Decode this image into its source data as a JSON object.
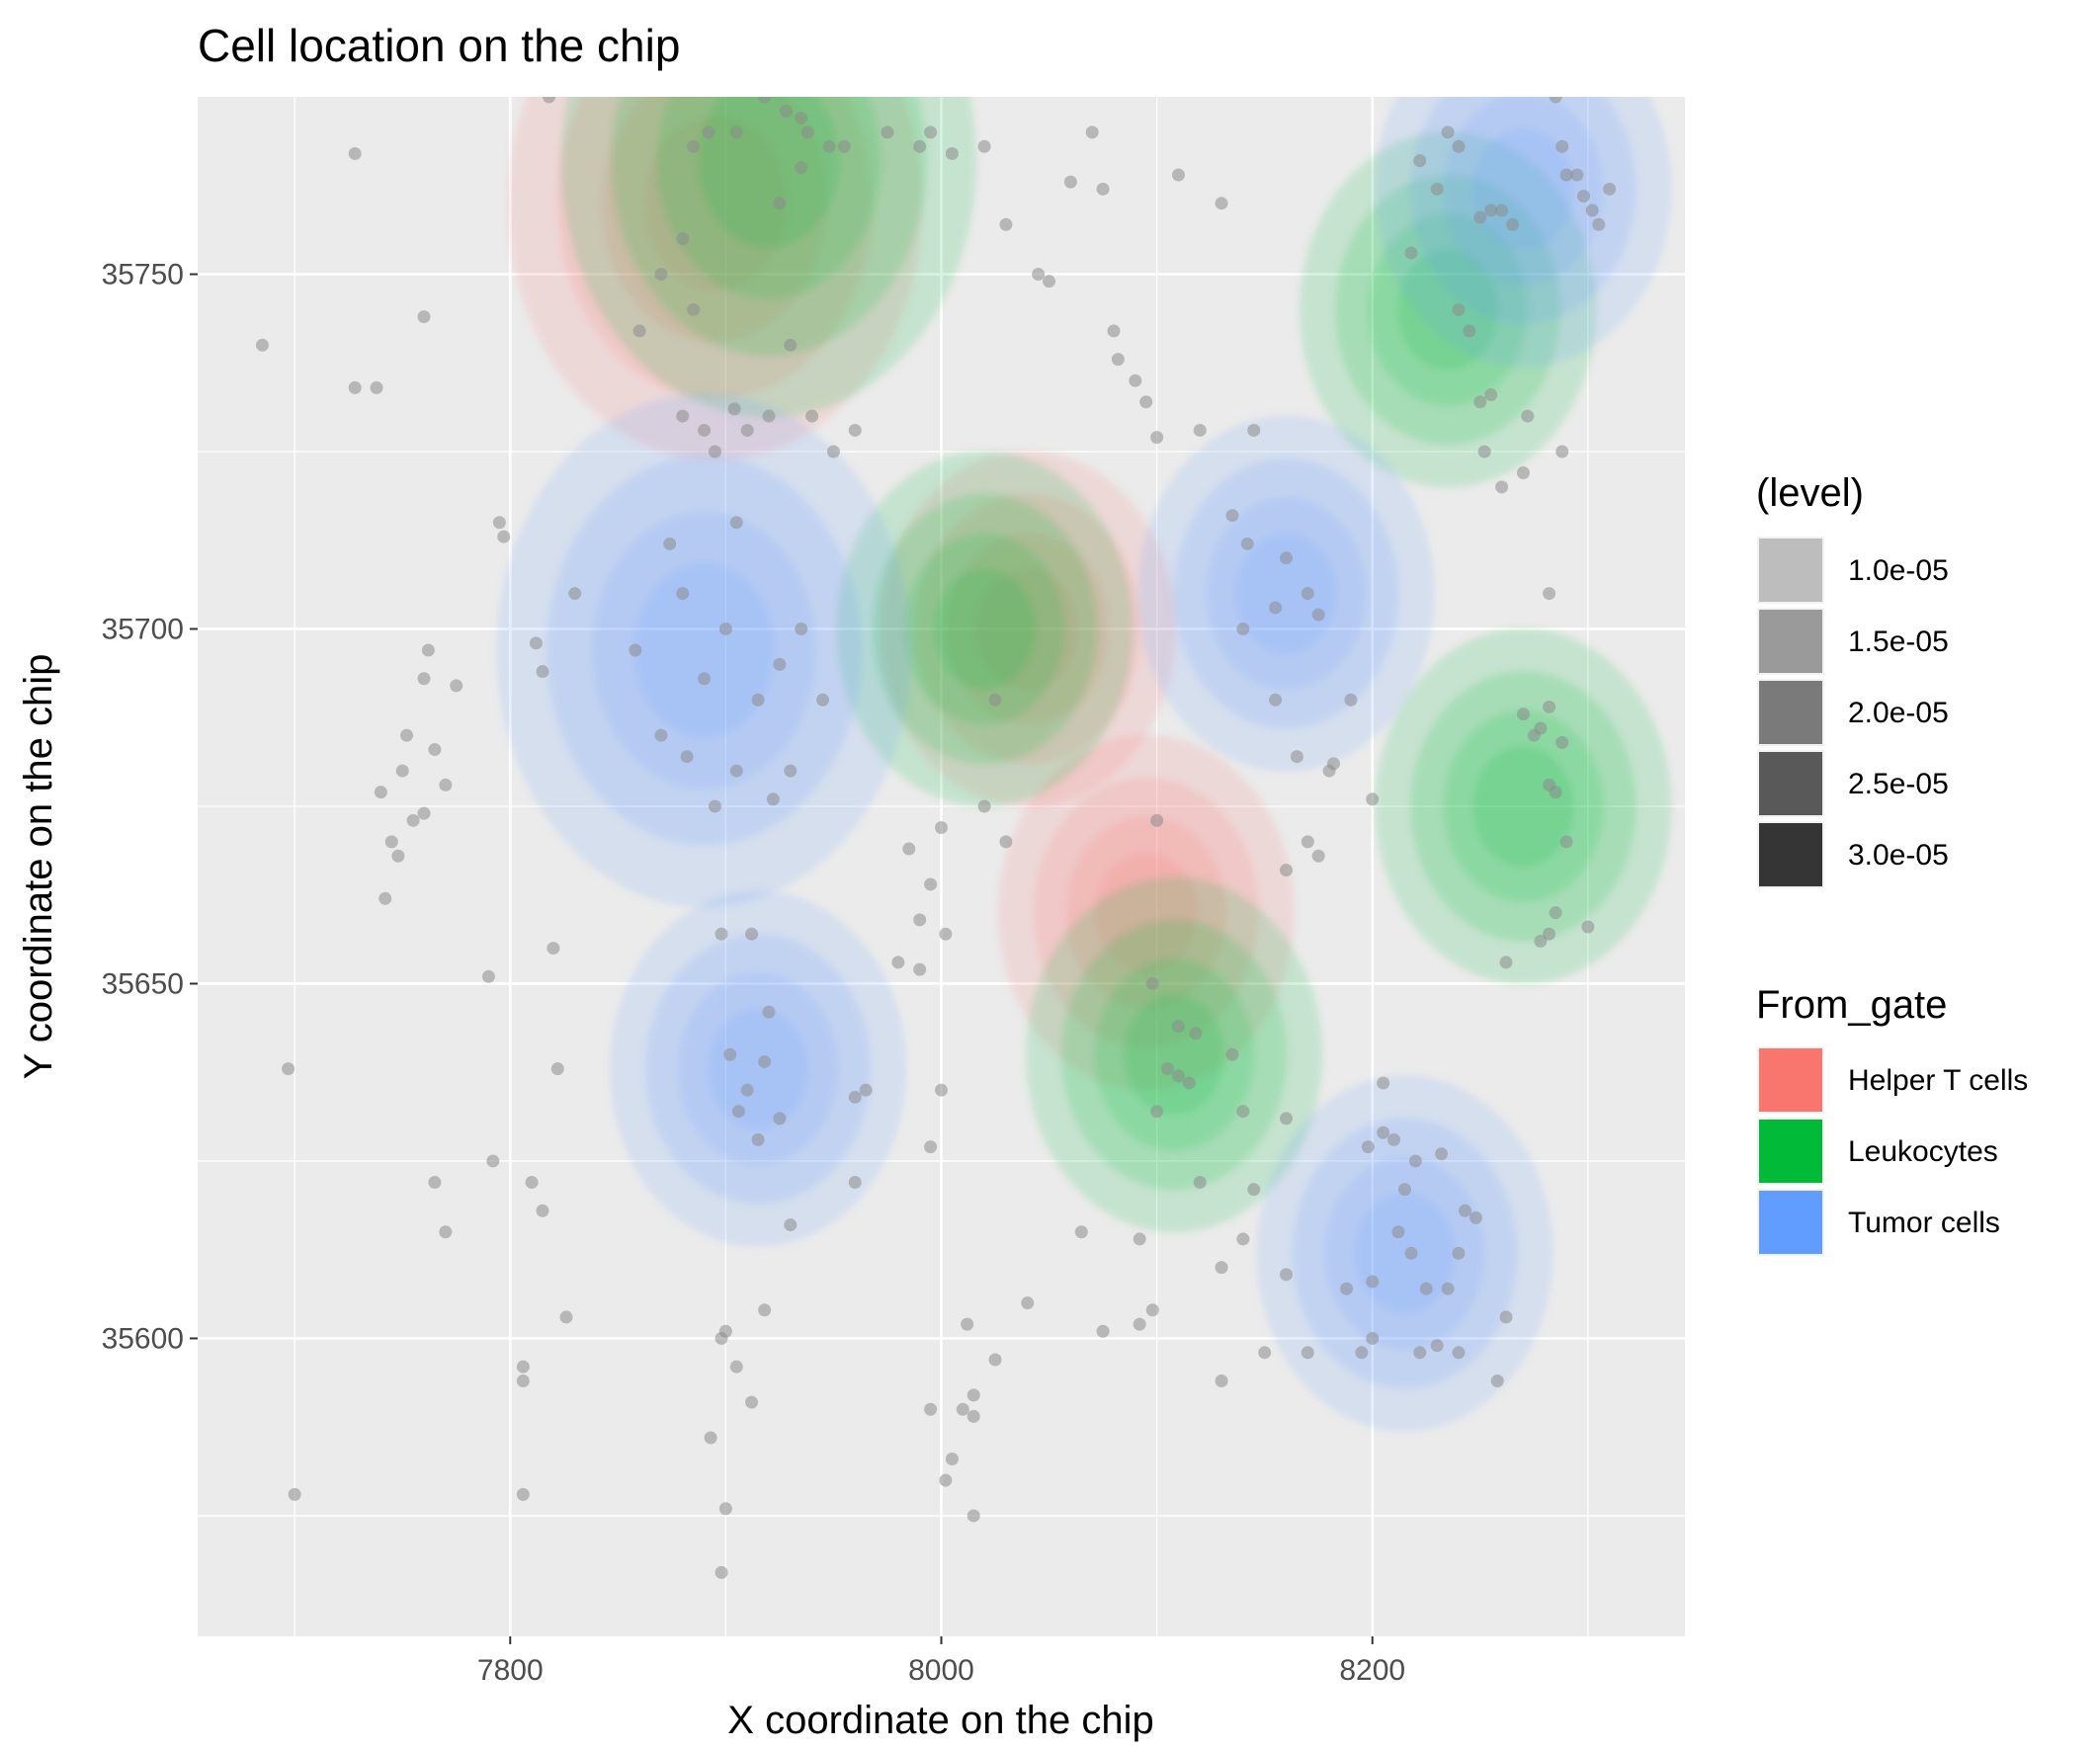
{
  "chart_data": {
    "type": "scatter",
    "subtype": "density-contour-overlay",
    "title": "Cell location on the chip",
    "xlabel": "X coordinate on the chip",
    "ylabel": "Y coordinate on the chip",
    "xlim": [
      7655,
      8345
    ],
    "ylim": [
      35558,
      35775
    ],
    "x_ticks": [
      7800,
      8000,
      8200
    ],
    "y_ticks": [
      35600,
      35650,
      35700,
      35750
    ],
    "grid": true,
    "legend_position": "right",
    "legends": [
      {
        "title": "(level)",
        "entries": [
          {
            "label": "1.0e-05",
            "color": "#bdbdbd"
          },
          {
            "label": "1.5e-05",
            "color": "#9a9a9a"
          },
          {
            "label": "2.0e-05",
            "color": "#7a7a7a"
          },
          {
            "label": "2.5e-05",
            "color": "#595959"
          },
          {
            "label": "3.0e-05",
            "color": "#353535"
          }
        ]
      },
      {
        "title": "From_gate",
        "entries": [
          {
            "label": "Helper T cells",
            "color": "#F8766D"
          },
          {
            "label": "Leukocytes",
            "color": "#00BA38"
          },
          {
            "label": "Tumor cells",
            "color": "#619CFF"
          }
        ]
      }
    ],
    "series": [
      {
        "name": "Helper T cells",
        "color": "#F8766D",
        "density_peaks": [
          [
            7895,
            35760
          ],
          [
            8040,
            35700
          ],
          [
            8095,
            35660
          ]
        ]
      },
      {
        "name": "Leukocytes",
        "color": "#00BA38",
        "density_peaks": [
          [
            7920,
            35766
          ],
          [
            8020,
            35700
          ],
          [
            8108,
            35640
          ],
          [
            8270,
            35675
          ],
          [
            8235,
            35745
          ]
        ]
      },
      {
        "name": "Tumor cells",
        "color": "#619CFF",
        "density_peaks": [
          [
            7890,
            35697
          ],
          [
            7915,
            35638
          ],
          [
            8215,
            35612
          ],
          [
            8160,
            35705
          ],
          [
            8270,
            35762
          ]
        ]
      }
    ],
    "points": [
      [
        7685,
        35740
      ],
      [
        7728,
        35767
      ],
      [
        7728,
        35734
      ],
      [
        7738,
        35734
      ],
      [
        7760,
        35744
      ],
      [
        7697,
        35638
      ],
      [
        7700,
        35578
      ],
      [
        7795,
        35715
      ],
      [
        7797,
        35713
      ],
      [
        7812,
        35698
      ],
      [
        7818,
        35775
      ],
      [
        7820,
        35655
      ],
      [
        7822,
        35638
      ],
      [
        7830,
        35705
      ],
      [
        7815,
        35694
      ],
      [
        7790,
        35651
      ],
      [
        7792,
        35625
      ],
      [
        7810,
        35622
      ],
      [
        7815,
        35618
      ],
      [
        7826,
        35603
      ],
      [
        7806,
        35596
      ],
      [
        7806,
        35594
      ],
      [
        7806,
        35578
      ],
      [
        7752,
        35685
      ],
      [
        7750,
        35680
      ],
      [
        7755,
        35673
      ],
      [
        7760,
        35693
      ],
      [
        7762,
        35697
      ],
      [
        7745,
        35670
      ],
      [
        7740,
        35677
      ],
      [
        7748,
        35668
      ],
      [
        7742,
        35662
      ],
      [
        7765,
        35683
      ],
      [
        7765,
        35622
      ],
      [
        7770,
        35615
      ],
      [
        7760,
        35674
      ],
      [
        7770,
        35678
      ],
      [
        7775,
        35692
      ],
      [
        7880,
        35730
      ],
      [
        7890,
        35728
      ],
      [
        7895,
        35725
      ],
      [
        7904,
        35731
      ],
      [
        7910,
        35728
      ],
      [
        7920,
        35730
      ],
      [
        7905,
        35715
      ],
      [
        7900,
        35700
      ],
      [
        7890,
        35693
      ],
      [
        7880,
        35705
      ],
      [
        7874,
        35712
      ],
      [
        7858,
        35697
      ],
      [
        7870,
        35685
      ],
      [
        7882,
        35682
      ],
      [
        7895,
        35675
      ],
      [
        7905,
        35680
      ],
      [
        7915,
        35690
      ],
      [
        7925,
        35695
      ],
      [
        7935,
        35700
      ],
      [
        7945,
        35690
      ],
      [
        7930,
        35680
      ],
      [
        7922,
        35676
      ],
      [
        7898,
        35657
      ],
      [
        7912,
        35657
      ],
      [
        7902,
        35640
      ],
      [
        7910,
        35635
      ],
      [
        7906,
        35632
      ],
      [
        7915,
        35628
      ],
      [
        7918,
        35639
      ],
      [
        7920,
        35646
      ],
      [
        7925,
        35631
      ],
      [
        7930,
        35616
      ],
      [
        7918,
        35604
      ],
      [
        7900,
        35601
      ],
      [
        7898,
        35600
      ],
      [
        7905,
        35596
      ],
      [
        7912,
        35591
      ],
      [
        7893,
        35586
      ],
      [
        7900,
        35576
      ],
      [
        7898,
        35567
      ],
      [
        7860,
        35742
      ],
      [
        7870,
        35750
      ],
      [
        7885,
        35745
      ],
      [
        7880,
        35755
      ],
      [
        7885,
        35768
      ],
      [
        7892,
        35770
      ],
      [
        7905,
        35770
      ],
      [
        7918,
        35775
      ],
      [
        7928,
        35773
      ],
      [
        7935,
        35772
      ],
      [
        7938,
        35770
      ],
      [
        7948,
        35768
      ],
      [
        7955,
        35768
      ],
      [
        7935,
        35765
      ],
      [
        7925,
        35760
      ],
      [
        7930,
        35740
      ],
      [
        7940,
        35730
      ],
      [
        7950,
        35725
      ],
      [
        7960,
        35728
      ],
      [
        7975,
        35770
      ],
      [
        7990,
        35768
      ],
      [
        7995,
        35770
      ],
      [
        8005,
        35767
      ],
      [
        8020,
        35768
      ],
      [
        8030,
        35757
      ],
      [
        8045,
        35750
      ],
      [
        8050,
        35749
      ],
      [
        8060,
        35763
      ],
      [
        8070,
        35770
      ],
      [
        8075,
        35762
      ],
      [
        8080,
        35742
      ],
      [
        8082,
        35738
      ],
      [
        8090,
        35735
      ],
      [
        8095,
        35732
      ],
      [
        8100,
        35727
      ],
      [
        8110,
        35764
      ],
      [
        8130,
        35760
      ],
      [
        8145,
        35728
      ],
      [
        8120,
        35728
      ],
      [
        8135,
        35716
      ],
      [
        8142,
        35712
      ],
      [
        8140,
        35700
      ],
      [
        8155,
        35703
      ],
      [
        8160,
        35710
      ],
      [
        8170,
        35705
      ],
      [
        8175,
        35702
      ],
      [
        8155,
        35690
      ],
      [
        8165,
        35682
      ],
      [
        8170,
        35670
      ],
      [
        8175,
        35668
      ],
      [
        8160,
        35666
      ],
      [
        8180,
        35680
      ],
      [
        8182,
        35681
      ],
      [
        8190,
        35690
      ],
      [
        8200,
        35676
      ],
      [
        8235,
        35770
      ],
      [
        8240,
        35768
      ],
      [
        8222,
        35766
      ],
      [
        8230,
        35762
      ],
      [
        8250,
        35758
      ],
      [
        8255,
        35759
      ],
      [
        8260,
        35759
      ],
      [
        8265,
        35757
      ],
      [
        8218,
        35753
      ],
      [
        8240,
        35745
      ],
      [
        8245,
        35742
      ],
      [
        8255,
        35733
      ],
      [
        8250,
        35732
      ],
      [
        8252,
        35725
      ],
      [
        8260,
        35720
      ],
      [
        8270,
        35722
      ],
      [
        8272,
        35730
      ],
      [
        8285,
        35775
      ],
      [
        8288,
        35768
      ],
      [
        8290,
        35764
      ],
      [
        8295,
        35764
      ],
      [
        8298,
        35761
      ],
      [
        8302,
        35759
      ],
      [
        8305,
        35757
      ],
      [
        8310,
        35762
      ],
      [
        8288,
        35725
      ],
      [
        8282,
        35705
      ],
      [
        8270,
        35688
      ],
      [
        8275,
        35685
      ],
      [
        8278,
        35686
      ],
      [
        8282,
        35689
      ],
      [
        8285,
        35677
      ],
      [
        8288,
        35684
      ],
      [
        8282,
        35678
      ],
      [
        8290,
        35670
      ],
      [
        8278,
        35656
      ],
      [
        8282,
        35657
      ],
      [
        8285,
        35660
      ],
      [
        8300,
        35658
      ],
      [
        8262,
        35653
      ],
      [
        8100,
        35673
      ],
      [
        8025,
        35690
      ],
      [
        8020,
        35675
      ],
      [
        8030,
        35670
      ],
      [
        7985,
        35669
      ],
      [
        7995,
        35664
      ],
      [
        8000,
        35672
      ],
      [
        7990,
        35659
      ],
      [
        7980,
        35653
      ],
      [
        7990,
        35652
      ],
      [
        8002,
        35657
      ],
      [
        8098,
        35650
      ],
      [
        8110,
        35644
      ],
      [
        8105,
        35638
      ],
      [
        8110,
        35637
      ],
      [
        8115,
        35636
      ],
      [
        8118,
        35643
      ],
      [
        8100,
        35632
      ],
      [
        8120,
        35622
      ],
      [
        8135,
        35640
      ],
      [
        8140,
        35632
      ],
      [
        8145,
        35621
      ],
      [
        8160,
        35631
      ],
      [
        8065,
        35615
      ],
      [
        8092,
        35614
      ],
      [
        8098,
        35604
      ],
      [
        8092,
        35602
      ],
      [
        8075,
        35601
      ],
      [
        8130,
        35594
      ],
      [
        8000,
        35635
      ],
      [
        7995,
        35627
      ],
      [
        7965,
        35635
      ],
      [
        7960,
        35634
      ],
      [
        7960,
        35622
      ],
      [
        8012,
        35602
      ],
      [
        8040,
        35605
      ],
      [
        8015,
        35589
      ],
      [
        8010,
        35590
      ],
      [
        8015,
        35592
      ],
      [
        8005,
        35583
      ],
      [
        8002,
        35580
      ],
      [
        8015,
        35575
      ],
      [
        8025,
        35597
      ],
      [
        7995,
        35590
      ],
      [
        8205,
        35636
      ],
      [
        8205,
        35629
      ],
      [
        8220,
        35625
      ],
      [
        8232,
        35626
      ],
      [
        8240,
        35612
      ],
      [
        8243,
        35618
      ],
      [
        8248,
        35617
      ],
      [
        8215,
        35621
      ],
      [
        8210,
        35628
      ],
      [
        8200,
        35608
      ],
      [
        8212,
        35615
      ],
      [
        8218,
        35612
      ],
      [
        8225,
        35607
      ],
      [
        8235,
        35607
      ],
      [
        8240,
        35598
      ],
      [
        8230,
        35599
      ],
      [
        8222,
        35598
      ],
      [
        8200,
        35600
      ],
      [
        8195,
        35598
      ],
      [
        8188,
        35607
      ],
      [
        8262,
        35603
      ],
      [
        8258,
        35594
      ],
      [
        8150,
        35598
      ],
      [
        8198,
        35627
      ],
      [
        8170,
        35598
      ],
      [
        8160,
        35609
      ],
      [
        8140,
        35614
      ],
      [
        8130,
        35610
      ]
    ]
  }
}
